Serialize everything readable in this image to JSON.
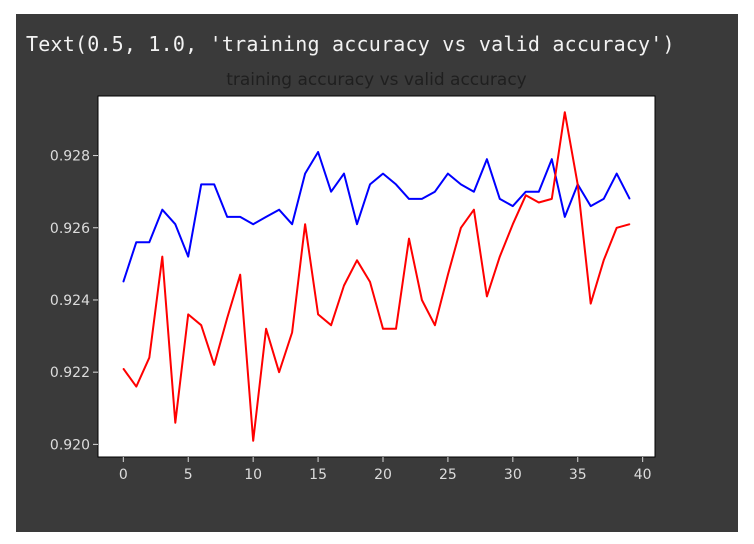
{
  "cell_output": "Text(0.5, 1.0, 'training accuracy vs valid accuracy')",
  "colors": {
    "cell_background": "#3a3a3a",
    "plot_background": "#ffffff",
    "tick_label": "#dcdcdc",
    "series_blue": "#0000ff",
    "series_red": "#ff0000"
  },
  "chart_data": {
    "type": "line",
    "title": "training accuracy vs valid accuracy",
    "xlabel": "",
    "ylabel": "",
    "xlim": [
      -1.95,
      40.95
    ],
    "ylim": [
      0.91965,
      0.92965
    ],
    "xticks": [
      0,
      5,
      10,
      15,
      20,
      25,
      30,
      35,
      40
    ],
    "yticks": [
      0.92,
      0.922,
      0.924,
      0.926,
      0.928
    ],
    "xtick_labels": [
      "0",
      "5",
      "10",
      "15",
      "20",
      "25",
      "30",
      "35",
      "40"
    ],
    "ytick_labels": [
      "0.920",
      "0.922",
      "0.924",
      "0.926",
      "0.928"
    ],
    "grid": false,
    "legend": "none",
    "x": [
      0,
      1,
      2,
      3,
      4,
      5,
      6,
      7,
      8,
      9,
      10,
      11,
      12,
      13,
      14,
      15,
      16,
      17,
      18,
      19,
      20,
      21,
      22,
      23,
      24,
      25,
      26,
      27,
      28,
      29,
      30,
      31,
      32,
      33,
      34,
      35,
      36,
      37,
      38,
      39
    ],
    "series": [
      {
        "color": "#0000ff",
        "values": [
          0.9245,
          0.9256,
          0.9256,
          0.9265,
          0.9261,
          0.9252,
          0.9272,
          0.9272,
          0.9263,
          0.9263,
          0.9261,
          0.9263,
          0.9265,
          0.9261,
          0.9275,
          0.9281,
          0.927,
          0.9275,
          0.9261,
          0.9272,
          0.9275,
          0.9272,
          0.9268,
          0.9268,
          0.927,
          0.9275,
          0.9272,
          0.927,
          0.9279,
          0.9268,
          0.9266,
          0.927,
          0.927,
          0.9279,
          0.9263,
          0.9272,
          0.9266,
          0.9268,
          0.9275,
          0.9268
        ]
      },
      {
        "color": "#ff0000",
        "values": [
          0.9221,
          0.9216,
          0.9224,
          0.9252,
          0.9206,
          0.9236,
          0.9233,
          0.9222,
          0.9235,
          0.9247,
          0.9201,
          0.9232,
          0.922,
          0.9231,
          0.9261,
          0.9236,
          0.9233,
          0.9244,
          0.9251,
          0.9245,
          0.9232,
          0.9232,
          0.9257,
          0.924,
          0.9233,
          0.9247,
          0.926,
          0.9265,
          0.9241,
          0.9252,
          0.9261,
          0.9269,
          0.9267,
          0.9268,
          0.9292,
          0.9272,
          0.9239,
          0.9251,
          0.926,
          0.9261
        ]
      }
    ]
  }
}
